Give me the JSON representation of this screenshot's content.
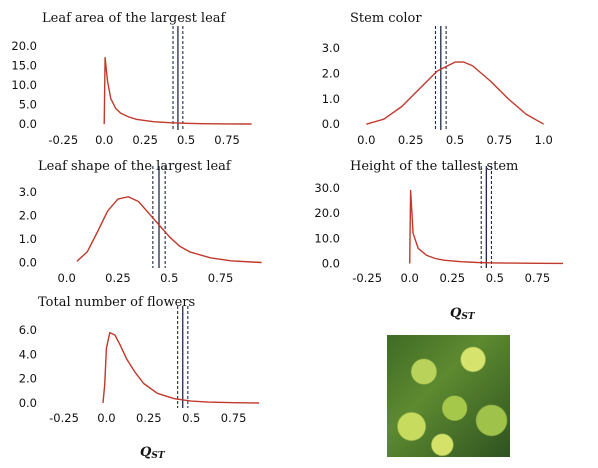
{
  "qst_label": "Q",
  "qst_sub": "ST",
  "photo": {
    "subject": "green plant with yellow flowers"
  },
  "chart_data": [
    {
      "type": "line",
      "title": "Leaf area of the largest leaf",
      "xticks": [
        -0.25,
        0,
        0.25,
        0.5,
        0.75
      ],
      "xtick_labels": [
        "-0.25",
        "0.0",
        "0.25",
        "0.5",
        "0.75"
      ],
      "yticks": [
        0,
        5,
        10,
        15,
        20
      ],
      "ytick_labels": [
        "0.0",
        "5.0",
        "10.0",
        "15.0",
        "20.0"
      ],
      "xlim": [
        -0.38,
        1.0
      ],
      "ylim": [
        -1,
        22
      ],
      "x": [
        0.0,
        0.005,
        0.02,
        0.04,
        0.07,
        0.1,
        0.15,
        0.2,
        0.3,
        0.4,
        0.5,
        0.6,
        0.75,
        0.9
      ],
      "y": [
        0.0,
        17.0,
        11.0,
        6.5,
        4.0,
        2.8,
        1.8,
        1.2,
        0.6,
        0.35,
        0.2,
        0.1,
        0.05,
        0.02
      ],
      "vlines": {
        "mean": 0.45,
        "bounds": [
          0.42,
          0.48
        ]
      }
    },
    {
      "type": "line",
      "title": "Stem color",
      "xticks": [
        0,
        0.25,
        0.5,
        0.75,
        1.0
      ],
      "xtick_labels": [
        "0.0",
        "0.25",
        "0.5",
        "0.75",
        "1.0"
      ],
      "yticks": [
        0,
        1,
        2,
        3
      ],
      "ytick_labels": [
        "0.0",
        "1.0",
        "2.0",
        "3.0"
      ],
      "xlim": [
        -0.12,
        1.12
      ],
      "ylim": [
        -0.15,
        3.4
      ],
      "x": [
        0.0,
        0.1,
        0.2,
        0.3,
        0.4,
        0.5,
        0.55,
        0.6,
        0.7,
        0.8,
        0.9,
        1.0
      ],
      "y": [
        0.0,
        0.2,
        0.7,
        1.4,
        2.1,
        2.45,
        2.45,
        2.3,
        1.7,
        1.0,
        0.4,
        0.0
      ],
      "vlines": {
        "mean": 0.42,
        "bounds": [
          0.39,
          0.45
        ]
      }
    },
    {
      "type": "line",
      "title": "Leaf shape of the largest leaf",
      "xticks": [
        0,
        0.25,
        0.5,
        0.75
      ],
      "xtick_labels": [
        "0.0",
        "0.25",
        "0.5",
        "0.75"
      ],
      "yticks": [
        0,
        1,
        2,
        3
      ],
      "ytick_labels": [
        "0.0",
        "1.0",
        "2.0",
        "3.0"
      ],
      "xlim": [
        -0.12,
        1.02
      ],
      "ylim": [
        -0.15,
        3.6
      ],
      "x": [
        0.05,
        0.1,
        0.15,
        0.2,
        0.25,
        0.3,
        0.35,
        0.4,
        0.45,
        0.5,
        0.55,
        0.6,
        0.7,
        0.8,
        0.9,
        0.95
      ],
      "y": [
        0.05,
        0.45,
        1.3,
        2.2,
        2.7,
        2.8,
        2.6,
        2.1,
        1.6,
        1.1,
        0.7,
        0.45,
        0.2,
        0.07,
        0.02,
        0.0
      ],
      "vlines": {
        "mean": 0.45,
        "bounds": [
          0.42,
          0.48
        ]
      }
    },
    {
      "type": "line",
      "title": "Height of the tallest stem",
      "xticks": [
        -0.25,
        0,
        0.25,
        0.5,
        0.75
      ],
      "xtick_labels": [
        "-0.25",
        "0.0",
        "0.25",
        "0.5",
        "0.75"
      ],
      "yticks": [
        0,
        10,
        20,
        30
      ],
      "ytick_labels": [
        "0.0",
        "10.0",
        "20.0",
        "30.0"
      ],
      "xlim": [
        -0.38,
        1.0
      ],
      "ylim": [
        -1,
        34
      ],
      "x": [
        0.0,
        0.005,
        0.02,
        0.05,
        0.1,
        0.15,
        0.2,
        0.3,
        0.4,
        0.5,
        0.6,
        0.75,
        0.9
      ],
      "y": [
        0.0,
        29.0,
        12.0,
        6.0,
        3.2,
        2.0,
        1.3,
        0.7,
        0.4,
        0.25,
        0.15,
        0.08,
        0.03
      ],
      "vlines": {
        "mean": 0.45,
        "bounds": [
          0.42,
          0.48
        ]
      }
    },
    {
      "type": "line",
      "title": "Total number of flowers",
      "xticks": [
        -0.25,
        0,
        0.25,
        0.5,
        0.75
      ],
      "xtick_labels": [
        "-0.25",
        "0.0",
        "0.25",
        "0.5",
        "0.75"
      ],
      "yticks": [
        0,
        2,
        4,
        6
      ],
      "ytick_labels": [
        "0.0",
        "2.0",
        "4.0",
        "6.0"
      ],
      "xlim": [
        -0.38,
        1.0
      ],
      "ylim": [
        -0.25,
        7.0
      ],
      "x": [
        -0.02,
        -0.01,
        0.0,
        0.02,
        0.05,
        0.08,
        0.12,
        0.17,
        0.22,
        0.3,
        0.4,
        0.5,
        0.6,
        0.75,
        0.9
      ],
      "y": [
        0.0,
        1.5,
        4.5,
        5.8,
        5.6,
        4.8,
        3.6,
        2.5,
        1.6,
        0.8,
        0.35,
        0.15,
        0.07,
        0.02,
        0.0
      ],
      "vlines": {
        "mean": 0.45,
        "bounds": [
          0.42,
          0.48
        ]
      }
    }
  ]
}
